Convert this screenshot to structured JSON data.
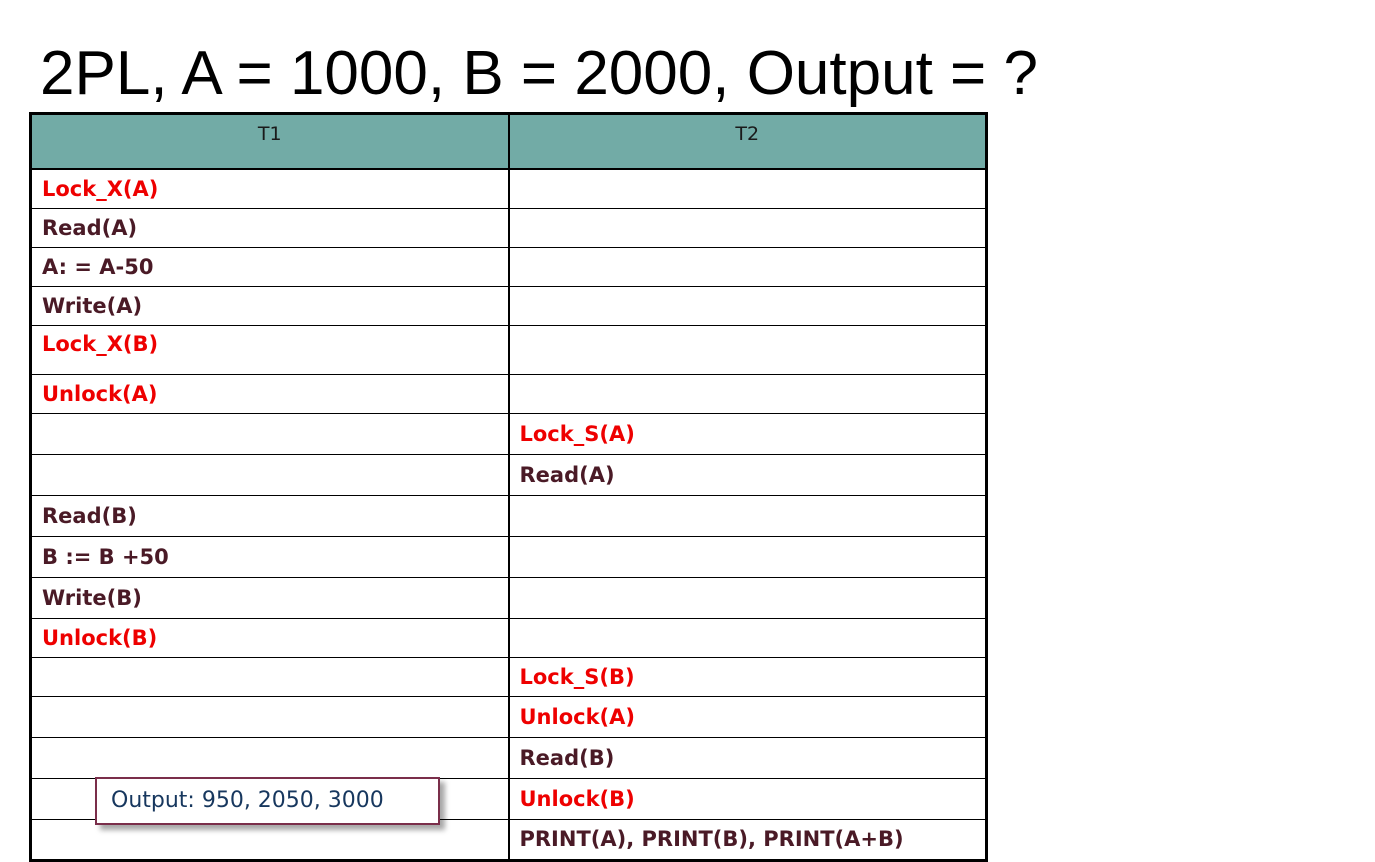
{
  "slide": {
    "title": "2PL, A = 1000, B = 2000, Output = ?"
  },
  "schedule": {
    "headers": [
      "T1",
      "T2"
    ],
    "rows": [
      {
        "t1": "Lock_X(A)",
        "t2": ""
      },
      {
        "t1": "Read(A)",
        "t2": ""
      },
      {
        "t1": "A: = A-50",
        "t2": ""
      },
      {
        "t1": "Write(A)",
        "t2": ""
      },
      {
        "t1": "Lock_X(B)",
        "t2": ""
      },
      {
        "t1": "Unlock(A)",
        "t2": ""
      },
      {
        "t1": "",
        "t2": "Lock_S(A)"
      },
      {
        "t1": "",
        "t2": "Read(A)"
      },
      {
        "t1": "Read(B)",
        "t2": ""
      },
      {
        "t1": "B := B +50",
        "t2": ""
      },
      {
        "t1": "Write(B)",
        "t2": ""
      },
      {
        "t1": "Unlock(B)",
        "t2": ""
      },
      {
        "t1": "",
        "t2": "Lock_S(B)"
      },
      {
        "t1": "",
        "t2": "Unlock(A)"
      },
      {
        "t1": "",
        "t2": "Read(B)"
      },
      {
        "t1": "",
        "t2": "Unlock(B)"
      },
      {
        "t1": "",
        "t2": "PRINT(A), PRINT(B), PRINT(A+B)"
      }
    ]
  },
  "output_box": {
    "text": "Output: 950, 2050, 3000"
  },
  "colors": {
    "header_bg": "#72aba6",
    "lock_op": "#ee0000",
    "normal_op": "#4a1a26",
    "output_text": "#17375e",
    "output_border": "#7a2e4a"
  }
}
